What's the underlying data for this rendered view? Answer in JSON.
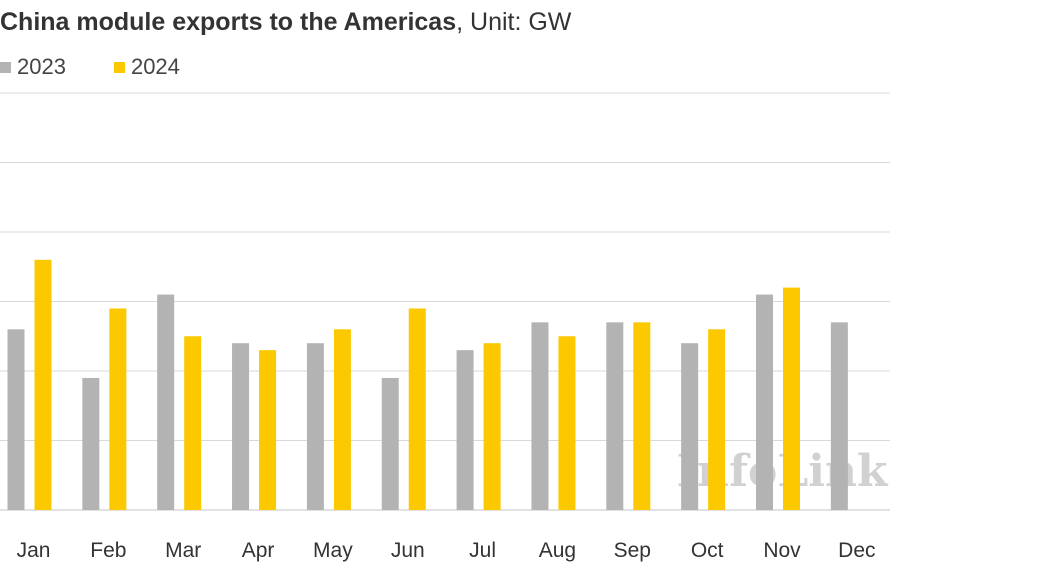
{
  "chart_data": {
    "type": "bar",
    "title": "China module exports to the Americas",
    "subtitle": ", Unit: GW",
    "xlabel": "",
    "ylabel": "",
    "ylim": [
      0,
      6
    ],
    "grid": true,
    "legend_placement": "top-left",
    "categories": [
      "Jan",
      "Feb",
      "Mar",
      "Apr",
      "May",
      "Jun",
      "Jul",
      "Aug",
      "Sep",
      "Oct",
      "Nov",
      "Dec"
    ],
    "series": [
      {
        "name": "2023",
        "color": "#b3b3b3",
        "values": [
          2.6,
          1.9,
          3.1,
          2.4,
          2.4,
          1.9,
          2.3,
          2.7,
          2.7,
          2.4,
          3.1,
          2.7
        ]
      },
      {
        "name": "2024",
        "color": "#fcc800",
        "values": [
          3.6,
          2.9,
          2.5,
          2.3,
          2.6,
          2.9,
          2.4,
          2.5,
          2.7,
          2.6,
          3.2,
          null
        ]
      }
    ]
  },
  "watermark": "InfoLink",
  "colors": {
    "grid": "#d9d9d9",
    "axis_text": "#333333"
  }
}
